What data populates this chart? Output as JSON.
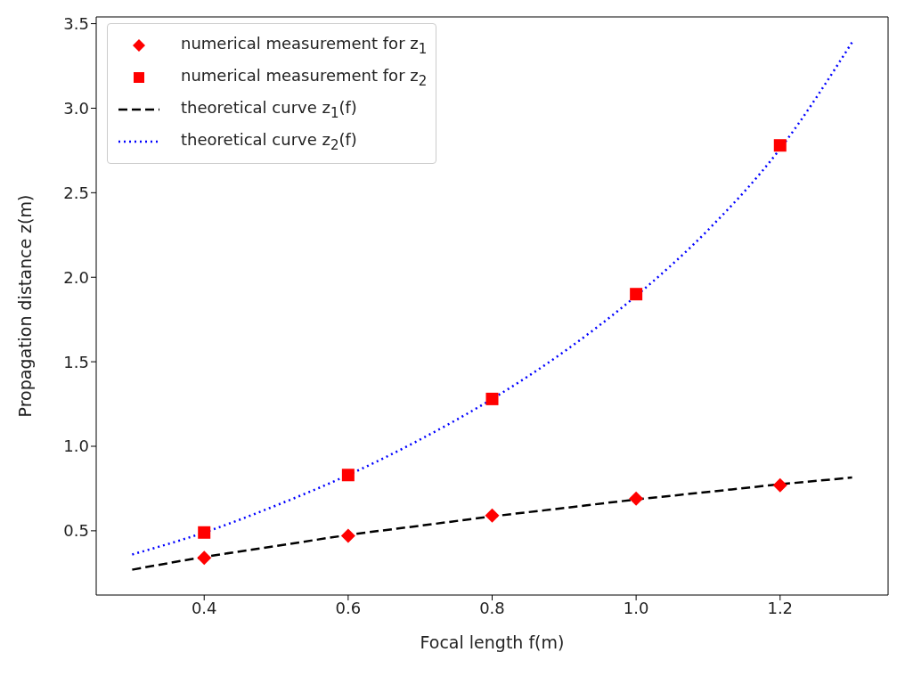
{
  "chart_data": {
    "type": "scatter",
    "xlabel": "Focal length f(m)",
    "ylabel": "Propagation distance z(m)",
    "xlim": [
      0.25,
      1.35
    ],
    "xticks": [
      0.4,
      0.6,
      0.8,
      {
        "value": 1,
        "label": "1.0"
      },
      1.2
    ],
    "ylim": [
      0.12,
      3.54
    ],
    "yticks": [
      0.5,
      {
        "value": 1,
        "label": "1.0"
      },
      1.5,
      {
        "value": 2,
        "label": "2.0"
      },
      2.5,
      {
        "value": 3,
        "label": "3.0"
      },
      3.5
    ],
    "legend": "top left",
    "series": [
      {
        "name": "numerical measurement for z$_{1}$",
        "marker": "diamond",
        "color": "#ff0000",
        "x": [
          0.4,
          0.6,
          0.8,
          1.0,
          1.2
        ],
        "values": [
          0.34,
          0.47,
          0.59,
          0.69,
          0.77
        ]
      },
      {
        "name": "numerical measurement for z$_{2}$",
        "marker": "square",
        "color": "#ff0000",
        "x": [
          0.4,
          0.6,
          0.8,
          1.0,
          1.2
        ],
        "values": [
          0.49,
          0.83,
          1.28,
          1.9,
          2.78
        ]
      },
      {
        "name": "theoretical curve z$_{1}$(f)",
        "type": "line",
        "line_style": "dashed",
        "color": "#000000",
        "x": [
          0.3,
          0.4,
          0.5,
          0.6,
          0.7,
          0.8,
          0.9,
          1.0,
          1.1,
          1.2,
          1.3
        ],
        "values": [
          0.27,
          0.345,
          0.41,
          0.475,
          0.53,
          0.585,
          0.635,
          0.685,
          0.73,
          0.775,
          0.815
        ]
      },
      {
        "name": "theoretical curve z$_{2}$(f)",
        "type": "line",
        "line_style": "dotted",
        "color": "#0000ff",
        "x": [
          0.3,
          0.4,
          0.5,
          0.6,
          0.7,
          0.8,
          0.9,
          1.0,
          1.1,
          1.2,
          1.3
        ],
        "values": [
          0.36,
          0.49,
          0.65,
          0.83,
          1.04,
          1.28,
          1.56,
          1.89,
          2.28,
          2.76,
          3.39
        ]
      }
    ]
  }
}
